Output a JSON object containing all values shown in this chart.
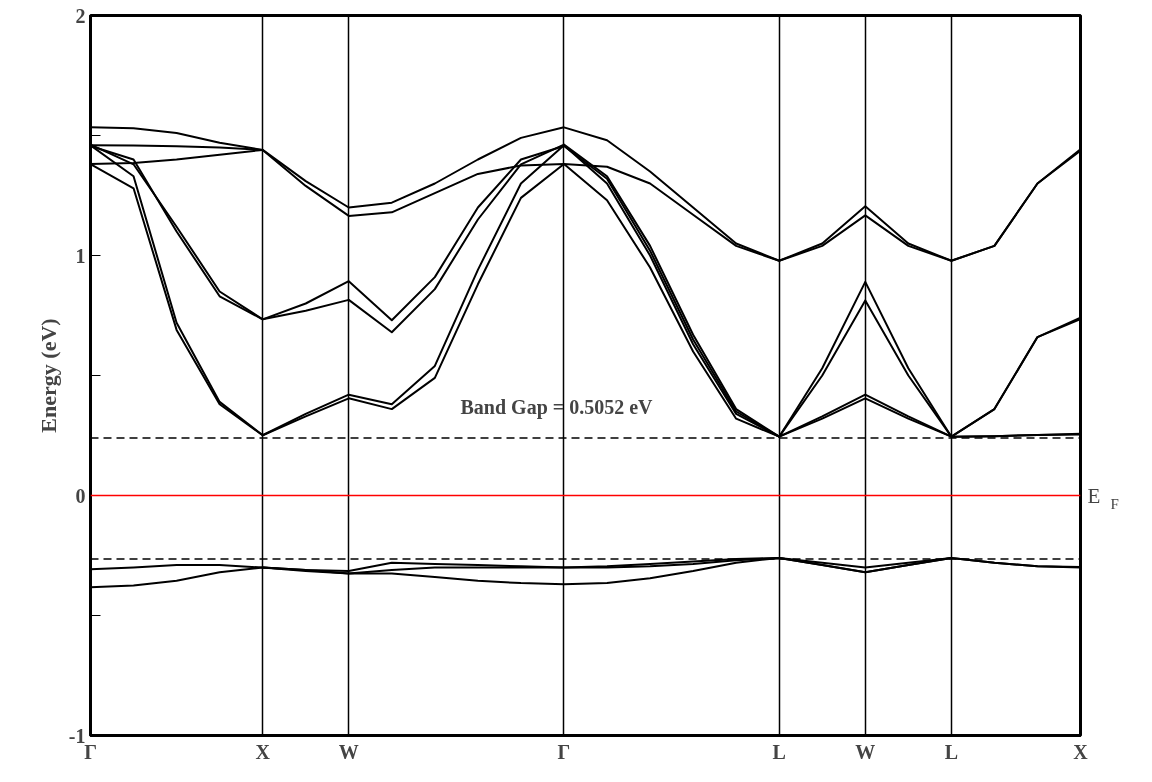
{
  "chart_data": {
    "type": "line",
    "ylabel": "Energy (eV)",
    "annotations": [
      "Band Gap = 0.5052 eV"
    ],
    "categories": [
      "Γ",
      null,
      null,
      null,
      "X",
      null,
      "W",
      null,
      null,
      null,
      null,
      "Γ",
      null,
      null,
      null,
      null,
      "L",
      null,
      "W",
      null,
      "L",
      null,
      null,
      "X"
    ],
    "ylim": [
      -1,
      2
    ],
    "yticks": [
      -1,
      {
        "value": -0.5,
        "label": null
      },
      0,
      {
        "value": 0.5,
        "label": null
      },
      1,
      {
        "value": 1.5,
        "label": null
      },
      2
    ],
    "grid": "x",
    "line_style": "solid",
    "marker": "none",
    "series": [
      {
        "color": "#000000",
        "values": [
          1.381,
          1.28,
          0.69,
          0.38,
          0.251,
          0.33,
          0.405,
          0.36,
          0.49,
          0.88,
          1.24,
          1.381,
          1.23,
          0.95,
          0.6,
          0.32,
          0.245,
          0.32,
          0.405,
          0.32,
          0.245,
          0.247,
          0.252,
          0.257
        ]
      },
      {
        "color": "#000000",
        "values": [
          1.459,
          1.33,
          0.72,
          0.39,
          0.251,
          0.34,
          0.42,
          0.38,
          0.54,
          0.94,
          1.3,
          1.459,
          1.3,
          1.0,
          0.63,
          0.34,
          0.245,
          0.33,
          0.42,
          0.33,
          0.245,
          0.247,
          0.252,
          0.254
        ]
      },
      {
        "color": "#000000",
        "values": [
          1.462,
          1.38,
          1.12,
          0.85,
          0.734,
          0.77,
          0.815,
          0.68,
          0.86,
          1.15,
          1.38,
          1.462,
          1.33,
          1.04,
          0.67,
          0.36,
          0.245,
          0.5,
          0.813,
          0.5,
          0.245,
          0.36,
          0.66,
          0.741
        ]
      },
      {
        "color": "#000000",
        "values": [
          1.456,
          1.4,
          1.1,
          0.83,
          0.734,
          0.8,
          0.893,
          0.73,
          0.91,
          1.2,
          1.4,
          1.456,
          1.32,
          1.02,
          0.65,
          0.35,
          0.245,
          0.53,
          0.89,
          0.53,
          0.245,
          0.36,
          0.66,
          0.735
        ]
      },
      {
        "color": "#000000",
        "values": [
          1.534,
          1.53,
          1.51,
          1.47,
          1.44,
          1.31,
          1.2,
          1.22,
          1.3,
          1.4,
          1.49,
          1.534,
          1.48,
          1.35,
          1.2,
          1.05,
          0.978,
          1.05,
          1.205,
          1.05,
          0.978,
          1.04,
          1.3,
          1.443
        ]
      },
      {
        "color": "#000000",
        "values": [
          1.459,
          1.458,
          1.455,
          1.45,
          1.44,
          1.29,
          1.165,
          1.18,
          1.26,
          1.34,
          1.375,
          1.381,
          1.37,
          1.3,
          1.17,
          1.04,
          0.978,
          1.04,
          1.167,
          1.04,
          0.978,
          1.04,
          1.3,
          1.437
        ]
      },
      {
        "color": "#000000",
        "values": [
          1.381,
          1.385,
          1.4,
          1.42,
          1.44,
          null,
          null,
          null,
          null,
          null,
          null,
          null,
          null,
          null,
          null,
          null,
          null,
          null,
          null,
          null,
          null,
          null,
          null,
          null
        ]
      },
      {
        "color": "#000000",
        "values": [
          -0.307,
          -0.3,
          -0.29,
          -0.29,
          -0.3,
          -0.31,
          -0.315,
          -0.28,
          -0.285,
          -0.29,
          -0.295,
          -0.3,
          -0.295,
          -0.285,
          -0.275,
          -0.265,
          -0.26,
          -0.28,
          -0.3,
          -0.28,
          -0.26,
          -0.28,
          -0.295,
          -0.298
        ]
      },
      {
        "color": "#000000",
        "values": [
          null,
          null,
          null,
          null,
          -0.3,
          -0.31,
          -0.325,
          -0.31,
          -0.3,
          -0.3,
          -0.3,
          -0.3,
          -0.3,
          -0.295,
          -0.285,
          -0.27,
          -0.26,
          -0.29,
          -0.32,
          -0.29,
          -0.26,
          null,
          null,
          null
        ]
      },
      {
        "color": "#000000",
        "values": [
          -0.382,
          -0.375,
          -0.355,
          -0.32,
          -0.3,
          -0.315,
          -0.325,
          -0.325,
          -0.34,
          -0.355,
          -0.365,
          -0.37,
          -0.365,
          -0.345,
          -0.315,
          -0.28,
          -0.26,
          -0.29,
          -0.32,
          -0.29,
          -0.26,
          -0.28,
          -0.295,
          -0.3
        ]
      }
    ],
    "ref_lines": [
      {
        "axis": "y",
        "value": 0.24,
        "color": "#000000",
        "line_style": "dashed"
      },
      {
        "axis": "y",
        "value": -0.265,
        "color": "#000000",
        "line_style": "dashed"
      },
      {
        "axis": "y",
        "value": 0,
        "color": "#ff0000",
        "line_style": "solid",
        "label": "E$_{F}$"
      }
    ]
  }
}
